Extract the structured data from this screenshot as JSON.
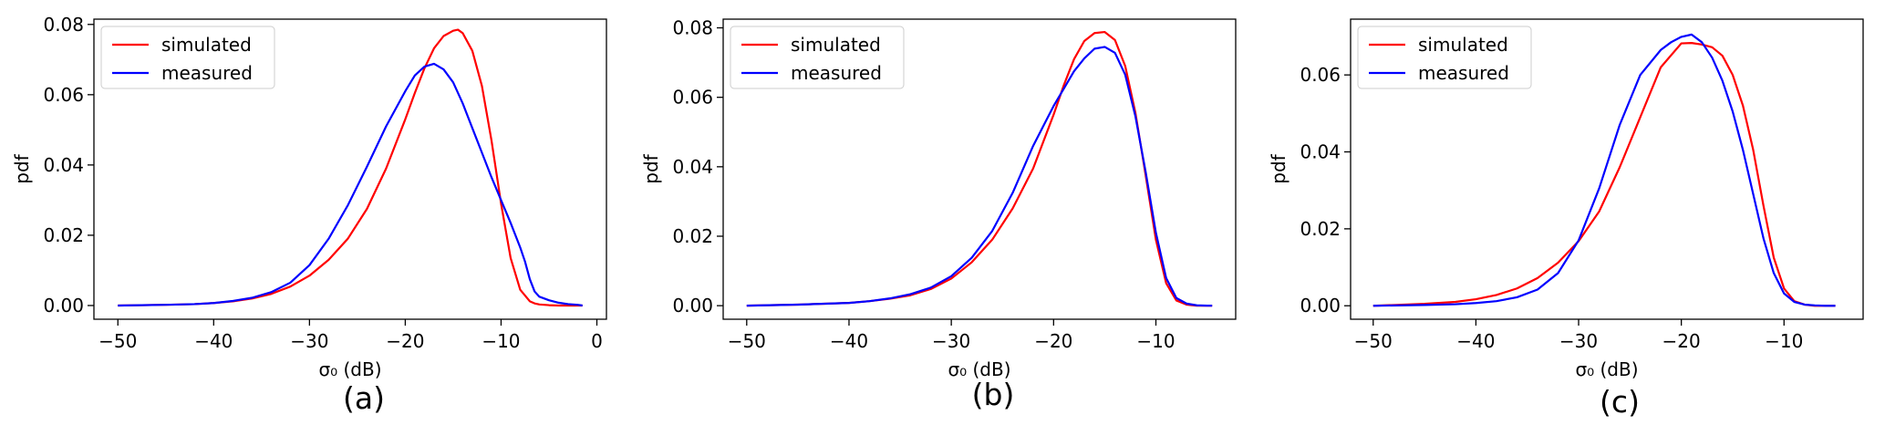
{
  "chart_data": [
    {
      "type": "line",
      "caption": "(a)",
      "xlabel": "σ₀ (dB)",
      "ylabel": "pdf",
      "xlim": [
        -52.5,
        1.0
      ],
      "ylim": [
        -0.0039,
        0.0815
      ],
      "xticks": [
        -50,
        -40,
        -30,
        -20,
        -10,
        0
      ],
      "xtick_labels": [
        "−50",
        "−40",
        "−30",
        "−20",
        "−10",
        "0"
      ],
      "yticks": [
        0.0,
        0.02,
        0.04,
        0.06,
        0.08
      ],
      "ytick_labels": [
        "0.00",
        "0.02",
        "0.04",
        "0.06",
        "0.08"
      ],
      "legend_position": "top-left",
      "series": [
        {
          "name": "simulated",
          "color": "#ff0000",
          "x": [
            -50,
            -45,
            -42,
            -40,
            -38,
            -36,
            -34,
            -32,
            -30,
            -28,
            -26,
            -24,
            -22,
            -20,
            -19,
            -18,
            -17,
            -16,
            -15,
            -14.5,
            -14,
            -13,
            -12,
            -11,
            -10,
            -9,
            -8,
            -7,
            -6.5,
            -6,
            -5,
            -4,
            -3,
            -2,
            -1.5
          ],
          "y": [
            0.0,
            0.0002,
            0.0004,
            0.0007,
            0.0012,
            0.002,
            0.0033,
            0.0054,
            0.0085,
            0.013,
            0.019,
            0.0275,
            0.039,
            0.053,
            0.0605,
            0.0675,
            0.0732,
            0.0767,
            0.0782,
            0.0785,
            0.0775,
            0.0725,
            0.0625,
            0.047,
            0.029,
            0.0135,
            0.0045,
            0.0012,
            0.0006,
            0.0003,
            0.0001,
            0.0,
            0.0,
            0.0,
            0.0
          ]
        },
        {
          "name": "measured",
          "color": "#0000ff",
          "x": [
            -50,
            -45,
            -42,
            -40,
            -38,
            -36,
            -34,
            -32,
            -30,
            -28,
            -26,
            -24,
            -22,
            -20,
            -19,
            -18,
            -17,
            -16,
            -15,
            -14,
            -13,
            -12,
            -11,
            -10,
            -9,
            -8,
            -7.5,
            -7,
            -6.5,
            -6,
            -5,
            -4,
            -3,
            -2,
            -1.5
          ],
          "y": [
            0.0,
            0.0002,
            0.0004,
            0.0007,
            0.0013,
            0.0022,
            0.0038,
            0.0065,
            0.0115,
            0.019,
            0.0285,
            0.0395,
            0.051,
            0.061,
            0.0655,
            0.068,
            0.0688,
            0.0672,
            0.0635,
            0.0575,
            0.0505,
            0.0435,
            0.0365,
            0.03,
            0.0235,
            0.0165,
            0.0125,
            0.0075,
            0.004,
            0.0025,
            0.0015,
            0.0008,
            0.0004,
            0.0002,
            0.0
          ]
        }
      ]
    },
    {
      "type": "line",
      "caption": "(b)",
      "xlabel": "σ₀ (dB)",
      "ylabel": "pdf",
      "xlim": [
        -52.3,
        -2.2
      ],
      "ylim": [
        -0.0039,
        0.0825
      ],
      "xticks": [
        -50,
        -40,
        -30,
        -20,
        -10
      ],
      "xtick_labels": [
        "−50",
        "−40",
        "−30",
        "−20",
        "−10"
      ],
      "yticks": [
        0.0,
        0.02,
        0.04,
        0.06,
        0.08
      ],
      "ytick_labels": [
        "0.00",
        "0.02",
        "0.04",
        "0.06",
        "0.08"
      ],
      "legend_position": "top-left",
      "series": [
        {
          "name": "simulated",
          "color": "#ff0000",
          "x": [
            -50,
            -45,
            -40,
            -38,
            -36,
            -34,
            -32,
            -30,
            -28,
            -26,
            -24,
            -22,
            -20,
            -19,
            -18,
            -17,
            -16,
            -15,
            -14,
            -13,
            -12,
            -11,
            -10,
            -9,
            -8,
            -7,
            -6,
            -5,
            -4.5
          ],
          "y": [
            0.0,
            0.0003,
            0.0008,
            0.0013,
            0.002,
            0.003,
            0.0048,
            0.0078,
            0.0125,
            0.019,
            0.028,
            0.0395,
            0.055,
            0.0635,
            0.071,
            0.0762,
            0.0785,
            0.0788,
            0.0765,
            0.069,
            0.0555,
            0.0375,
            0.019,
            0.0065,
            0.0015,
            0.0003,
            0.0,
            0.0,
            0.0
          ]
        },
        {
          "name": "measured",
          "color": "#0000ff",
          "x": [
            -50,
            -45,
            -40,
            -38,
            -36,
            -34,
            -32,
            -30,
            -28,
            -26,
            -24,
            -22,
            -20,
            -19,
            -18,
            -17,
            -16,
            -15,
            -14,
            -13,
            -12,
            -11,
            -10,
            -9,
            -8,
            -7,
            -6,
            -5,
            -4.5
          ],
          "y": [
            0.0,
            0.0003,
            0.0008,
            0.0013,
            0.0021,
            0.0033,
            0.0052,
            0.0085,
            0.0138,
            0.0215,
            0.0325,
            0.046,
            0.0575,
            0.0625,
            0.0675,
            0.0712,
            0.074,
            0.0745,
            0.0728,
            0.0665,
            0.0545,
            0.0385,
            0.021,
            0.008,
            0.0022,
            0.0006,
            0.0001,
            0.0,
            0.0
          ]
        }
      ]
    },
    {
      "type": "line",
      "caption": "(c)",
      "xlabel": "σ₀ (dB)",
      "ylabel": "pdf",
      "xlim": [
        -52.2,
        -2.3
      ],
      "ylim": [
        -0.0035,
        0.0745
      ],
      "xticks": [
        -50,
        -40,
        -30,
        -20,
        -10
      ],
      "xtick_labels": [
        "−50",
        "−40",
        "−30",
        "−20",
        "−10"
      ],
      "yticks": [
        0.0,
        0.02,
        0.04,
        0.06
      ],
      "ytick_labels": [
        "0.00",
        "0.02",
        "0.04",
        "0.06"
      ],
      "legend_position": "top-left",
      "series": [
        {
          "name": "simulated",
          "color": "#ff0000",
          "x": [
            -50,
            -45,
            -42,
            -40,
            -38,
            -36,
            -34,
            -32,
            -30,
            -28,
            -26,
            -24,
            -22,
            -20,
            -19,
            -18,
            -17,
            -16,
            -15,
            -14,
            -13,
            -12,
            -11,
            -10,
            -9,
            -8,
            -7,
            -6,
            -5
          ],
          "y": [
            0.0,
            0.0005,
            0.001,
            0.0017,
            0.0028,
            0.0045,
            0.0072,
            0.0112,
            0.0168,
            0.0245,
            0.036,
            0.049,
            0.062,
            0.0682,
            0.0683,
            0.0679,
            0.0672,
            0.065,
            0.06,
            0.052,
            0.0405,
            0.026,
            0.0125,
            0.0045,
            0.0012,
            0.0003,
            0.0,
            0.0,
            0.0
          ]
        },
        {
          "name": "measured",
          "color": "#0000ff",
          "x": [
            -50,
            -45,
            -42,
            -40,
            -38,
            -36,
            -34,
            -32,
            -30,
            -28,
            -26,
            -24,
            -22,
            -21,
            -20,
            -19,
            -18,
            -17,
            -16,
            -15,
            -14,
            -13,
            -12,
            -11,
            -10,
            -9,
            -8,
            -7,
            -6,
            -5
          ],
          "y": [
            0.0,
            0.0002,
            0.0004,
            0.0007,
            0.0012,
            0.0022,
            0.0042,
            0.0085,
            0.017,
            0.0305,
            0.047,
            0.06,
            0.0665,
            0.0685,
            0.0699,
            0.0705,
            0.0685,
            0.0645,
            0.0585,
            0.0505,
            0.0405,
            0.029,
            0.0175,
            0.0085,
            0.0032,
            0.001,
            0.0003,
            0.0001,
            0.0,
            0.0
          ]
        }
      ]
    }
  ]
}
